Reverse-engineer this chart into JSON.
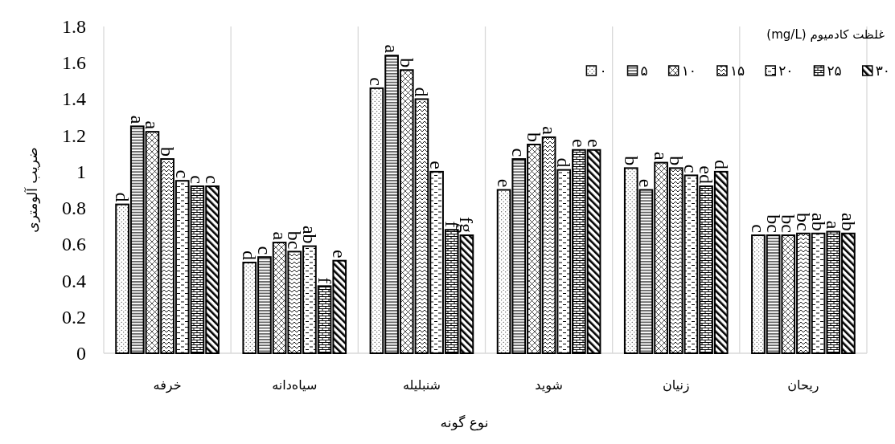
{
  "chart_data": {
    "type": "bar",
    "ylabel": "ضریب آلومتری",
    "xlabel": "نوع گونه",
    "legend_title": "غلظت کادمیوم (mg/L)",
    "categories": [
      "خرفه",
      "سیاه‌دانه",
      "شنبلیله",
      "شوید",
      "زنیان",
      "ریحان"
    ],
    "series": [
      {
        "name": "۰",
        "color": "#000000",
        "values": [
          0.82,
          0.5,
          1.46,
          0.9,
          1.02,
          0.65
        ],
        "value_labels": [
          "d",
          "d",
          "c",
          "e",
          "b",
          "c"
        ]
      },
      {
        "name": "۵",
        "color": "#000000",
        "values": [
          1.25,
          0.53,
          1.64,
          1.07,
          0.9,
          0.65
        ],
        "value_labels": [
          "a",
          "c",
          "a",
          "c",
          "e",
          "bc"
        ]
      },
      {
        "name": "۱۰",
        "color": "#000000",
        "values": [
          1.22,
          0.61,
          1.56,
          1.15,
          1.05,
          0.65
        ],
        "value_labels": [
          "a",
          "a",
          "b",
          "b",
          "a",
          "bc"
        ]
      },
      {
        "name": "۱۵",
        "color": "#000000",
        "values": [
          1.07,
          0.56,
          1.4,
          1.19,
          1.02,
          0.66
        ],
        "value_labels": [
          "b",
          "bc",
          "d",
          "a",
          "b",
          "bc"
        ]
      },
      {
        "name": "۲۰",
        "color": "#000000",
        "values": [
          0.95,
          0.59,
          1.0,
          1.01,
          0.98,
          0.66
        ],
        "value_labels": [
          "c",
          "ab",
          "e",
          "d",
          "c",
          "ab"
        ]
      },
      {
        "name": "۲۵",
        "color": "#000000",
        "values": [
          0.92,
          0.37,
          0.68,
          1.12,
          0.92,
          0.67
        ],
        "value_labels": [
          "c",
          "f",
          "f",
          "e",
          "ed",
          "a"
        ]
      },
      {
        "name": "۳۰",
        "color": "#000000",
        "values": [
          0.92,
          0.51,
          0.65,
          1.12,
          1.0,
          0.66
        ],
        "value_labels": [
          "c",
          "e",
          "fg",
          "e",
          "d",
          "ab"
        ]
      }
    ],
    "ylim": [
      0,
      1.8
    ],
    "yticks": [
      0,
      0.2,
      0.4,
      0.6,
      0.8,
      1,
      1.2,
      1.4,
      1.6,
      1.8
    ],
    "grid": "x",
    "legend": "top right"
  }
}
